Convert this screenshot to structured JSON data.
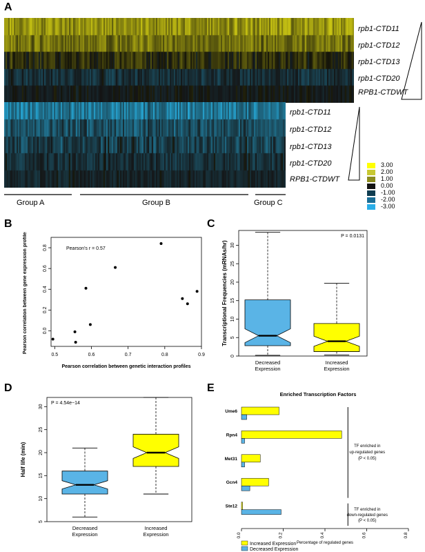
{
  "panel_letters": {
    "a": "A",
    "b": "B",
    "c": "C",
    "d": "D",
    "e": "E"
  },
  "heatmap": {
    "top_rows": [
      "rpb1-CTD11",
      "rpb1-CTD12",
      "rpb1-CTD13",
      "rpb1-CTD20",
      "RPB1-CTDWT"
    ],
    "bottom_rows": [
      "rpb1-CTD11",
      "rpb1-CTD12",
      "rpb1-CTD13",
      "rpb1-CTD20",
      "RPB1-CTDWT"
    ],
    "groups": [
      "Group A",
      "Group B",
      "Group C"
    ],
    "legend_values": [
      "3.00",
      "2.00",
      "1.00",
      "0.00",
      "-1.00",
      "-2.00",
      "-3.00"
    ],
    "legend_colors": [
      "#ffff00",
      "#c8c832",
      "#8c8c1e",
      "#141414",
      "#0f3c50",
      "#1a6e96",
      "#2aaee8"
    ]
  },
  "chart_data": [
    {
      "type": "scatter",
      "panel": "B",
      "title": "",
      "xlabel": "Pearson correlation between genetic interaction profiles",
      "ylabel": "Pearson correlation between gene expression profiles",
      "annotation": "Pearson's r = 0.57",
      "xlim": [
        0.49,
        0.9
      ],
      "ylim": [
        -0.15,
        0.9
      ],
      "xticks": [
        "0.5",
        "0.6",
        "0.7",
        "0.8",
        "0.9"
      ],
      "yticks": [
        "0.0",
        "0.2",
        "0.4",
        "0.6",
        "0.8"
      ],
      "x": [
        0.495,
        0.555,
        0.557,
        0.585,
        0.597,
        0.665,
        0.79,
        0.848,
        0.862,
        0.888
      ],
      "y": [
        -0.08,
        -0.01,
        -0.11,
        0.41,
        0.06,
        0.61,
        0.84,
        0.31,
        0.26,
        0.38
      ]
    },
    {
      "type": "box",
      "panel": "C",
      "title": "",
      "ylabel": "Transcriptional Frequencies (mRNAs/hr)",
      "annotation": "P = 0.0131",
      "ylim": [
        0,
        34
      ],
      "yticks": [
        "0",
        "5",
        "10",
        "15",
        "20",
        "25",
        "30"
      ],
      "categories": [
        "Decreased Expression",
        "Increased Expression"
      ],
      "colors": [
        "#5ab4e6",
        "#ffff00"
      ],
      "boxes": [
        {
          "min": 0.2,
          "q1": 2.8,
          "median": 5.5,
          "q3": 15.2,
          "max": 33.5
        },
        {
          "min": 0.3,
          "q1": 1.2,
          "median": 4.0,
          "q3": 8.8,
          "max": 19.7
        }
      ]
    },
    {
      "type": "box",
      "panel": "D",
      "title": "",
      "ylabel": "Half life (min)",
      "annotation": "P = 4.54e−14",
      "ylim": [
        5,
        32
      ],
      "yticks": [
        "5",
        "10",
        "15",
        "20",
        "25",
        "30"
      ],
      "categories": [
        "Decreased Expression",
        "Increased Expression"
      ],
      "colors": [
        "#5ab4e6",
        "#ffff00"
      ],
      "boxes": [
        {
          "min": 6,
          "q1": 11,
          "median": 13,
          "q3": 16,
          "max": 21
        },
        {
          "min": 11,
          "q1": 17,
          "median": 20,
          "q3": 24,
          "max": 32
        }
      ]
    },
    {
      "type": "bar",
      "panel": "E",
      "title": "Enriched Transcription Factors",
      "xlabel": "Percentage of regulated genes",
      "xlim": [
        0,
        0.8
      ],
      "xticks": [
        "0.0",
        "0.2",
        "0.4",
        "0.6",
        "0.8"
      ],
      "categories": [
        "Ume6",
        "Rpn4",
        "Met31",
        "Gcn4",
        "Ste12"
      ],
      "series": [
        {
          "name": "Increased Expression",
          "color": "#ffff00",
          "values": [
            0.18,
            0.48,
            0.09,
            0.13,
            0.005
          ]
        },
        {
          "name": "Decreased Expression",
          "color": "#5ab4e6",
          "values": [
            0.025,
            0.015,
            0.015,
            0.04,
            0.19
          ]
        }
      ],
      "bracket_labels": [
        [
          "TF enriched in",
          "up-regulated genes",
          "(P < 0.05)"
        ],
        [
          "TF enriched in",
          "down-regulated genes",
          "(P < 0.05)"
        ]
      ]
    }
  ]
}
